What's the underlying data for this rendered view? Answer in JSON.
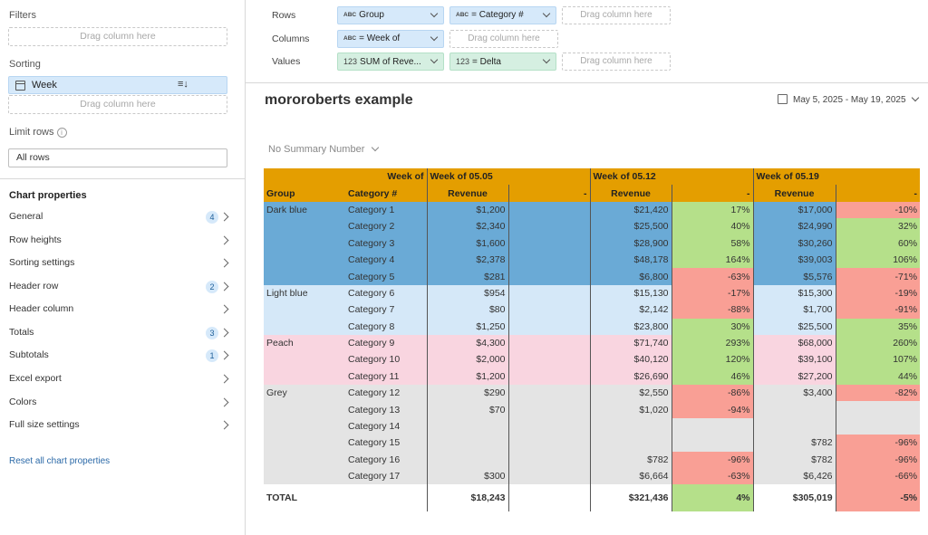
{
  "left_panel": {
    "filters_label": "Filters",
    "filters_drop": "Drag column here",
    "sorting_label": "Sorting",
    "sort_item": "Week",
    "sorting_drop": "Drag column here",
    "limit_label": "Limit rows",
    "limit_value": "All rows",
    "chart_properties_title": "Chart properties",
    "properties": [
      {
        "label": "General",
        "badge": "4"
      },
      {
        "label": "Row heights",
        "badge": ""
      },
      {
        "label": "Sorting settings",
        "badge": ""
      },
      {
        "label": "Header row",
        "badge": "2"
      },
      {
        "label": "Header column",
        "badge": ""
      },
      {
        "label": "Totals",
        "badge": "3"
      },
      {
        "label": "Subtotals",
        "badge": "1"
      },
      {
        "label": "Excel export",
        "badge": ""
      },
      {
        "label": "Colors",
        "badge": ""
      },
      {
        "label": "Full size settings",
        "badge": ""
      }
    ],
    "reset_label": "Reset all chart properties"
  },
  "config": {
    "rows_label": "Rows",
    "columns_label": "Columns",
    "values_label": "Values",
    "rows": [
      {
        "tag": "ABC",
        "label": "Group"
      },
      {
        "tag": "ABC",
        "label": "= Category #"
      }
    ],
    "columns": [
      {
        "tag": "ABC",
        "label": "= Week of"
      }
    ],
    "values": [
      {
        "tag": "123",
        "label": "SUM of Reve..."
      },
      {
        "tag": "123",
        "label": "= Delta"
      }
    ],
    "drop_text": "Drag column here"
  },
  "main": {
    "title": "mororoberts example",
    "date_range": "May 5, 2025 - May 19, 2025",
    "summary_select": "No Summary Number"
  },
  "table": {
    "corner_header": "Week of",
    "weeks": [
      "Week of 05.05",
      "Week of 05.12",
      "Week of 05.19"
    ],
    "group_header": "Group",
    "category_header": "Category #",
    "revenue_header": "Revenue",
    "delta_header": "-",
    "rows": [
      {
        "group": "Dark blue",
        "category": "Category 1",
        "w1_rev": "$1,200",
        "w1_delta": "",
        "w2_rev": "$21,420",
        "w2_delta": "17%",
        "w3_rev": "$17,000",
        "w3_delta": "-10%"
      },
      {
        "group": "",
        "category": "Category 2",
        "w1_rev": "$2,340",
        "w1_delta": "",
        "w2_rev": "$25,500",
        "w2_delta": "40%",
        "w3_rev": "$24,990",
        "w3_delta": "32%"
      },
      {
        "group": "",
        "category": "Category 3",
        "w1_rev": "$1,600",
        "w1_delta": "",
        "w2_rev": "$28,900",
        "w2_delta": "58%",
        "w3_rev": "$30,260",
        "w3_delta": "60%"
      },
      {
        "group": "",
        "category": "Category 4",
        "w1_rev": "$2,378",
        "w1_delta": "",
        "w2_rev": "$48,178",
        "w2_delta": "164%",
        "w3_rev": "$39,003",
        "w3_delta": "106%"
      },
      {
        "group": "",
        "category": "Category 5",
        "w1_rev": "$281",
        "w1_delta": "",
        "w2_rev": "$6,800",
        "w2_delta": "-63%",
        "w3_rev": "$5,576",
        "w3_delta": "-71%"
      },
      {
        "group": "Light blue",
        "category": "Category 6",
        "w1_rev": "$954",
        "w1_delta": "",
        "w2_rev": "$15,130",
        "w2_delta": "-17%",
        "w3_rev": "$15,300",
        "w3_delta": "-19%"
      },
      {
        "group": "",
        "category": "Category 7",
        "w1_rev": "$80",
        "w1_delta": "",
        "w2_rev": "$2,142",
        "w2_delta": "-88%",
        "w3_rev": "$1,700",
        "w3_delta": "-91%"
      },
      {
        "group": "",
        "category": "Category 8",
        "w1_rev": "$1,250",
        "w1_delta": "",
        "w2_rev": "$23,800",
        "w2_delta": "30%",
        "w3_rev": "$25,500",
        "w3_delta": "35%"
      },
      {
        "group": "Peach",
        "category": "Category 9",
        "w1_rev": "$4,300",
        "w1_delta": "",
        "w2_rev": "$71,740",
        "w2_delta": "293%",
        "w3_rev": "$68,000",
        "w3_delta": "260%"
      },
      {
        "group": "",
        "category": "Category 10",
        "w1_rev": "$2,000",
        "w1_delta": "",
        "w2_rev": "$40,120",
        "w2_delta": "120%",
        "w3_rev": "$39,100",
        "w3_delta": "107%"
      },
      {
        "group": "",
        "category": "Category 11",
        "w1_rev": "$1,200",
        "w1_delta": "",
        "w2_rev": "$26,690",
        "w2_delta": "46%",
        "w3_rev": "$27,200",
        "w3_delta": "44%"
      },
      {
        "group": "Grey",
        "category": "Category 12",
        "w1_rev": "$290",
        "w1_delta": "",
        "w2_rev": "$2,550",
        "w2_delta": "-86%",
        "w3_rev": "$3,400",
        "w3_delta": "-82%"
      },
      {
        "group": "",
        "category": "Category 13",
        "w1_rev": "$70",
        "w1_delta": "",
        "w2_rev": "$1,020",
        "w2_delta": "-94%",
        "w3_rev": "",
        "w3_delta": ""
      },
      {
        "group": "",
        "category": "Category 14",
        "w1_rev": "",
        "w1_delta": "",
        "w2_rev": "",
        "w2_delta": "",
        "w3_rev": "",
        "w3_delta": ""
      },
      {
        "group": "",
        "category": "Category 15",
        "w1_rev": "",
        "w1_delta": "",
        "w2_rev": "",
        "w2_delta": "",
        "w3_rev": "$782",
        "w3_delta": "-96%"
      },
      {
        "group": "",
        "category": "Category 16",
        "w1_rev": "",
        "w1_delta": "",
        "w2_rev": "$782",
        "w2_delta": "-96%",
        "w3_rev": "$782",
        "w3_delta": "-96%"
      },
      {
        "group": "",
        "category": "Category 17",
        "w1_rev": "$300",
        "w1_delta": "",
        "w2_rev": "$6,664",
        "w2_delta": "-63%",
        "w3_rev": "$6,426",
        "w3_delta": "-66%"
      }
    ],
    "total": {
      "label": "TOTAL",
      "w1_rev": "$18,243",
      "w1_delta": "",
      "w2_rev": "$321,436",
      "w2_delta": "4%",
      "w3_rev": "$305,019",
      "w3_delta": "-5%"
    }
  },
  "colors": {
    "header": "#e49e00",
    "dark_blue": "#6aaad6",
    "light_blue": "#d5e8f8",
    "peach": "#f9d5e0",
    "grey": "#e4e4e4",
    "positive": "#b5e08a",
    "negative": "#f99f95",
    "accent": "#2c6aa8"
  }
}
